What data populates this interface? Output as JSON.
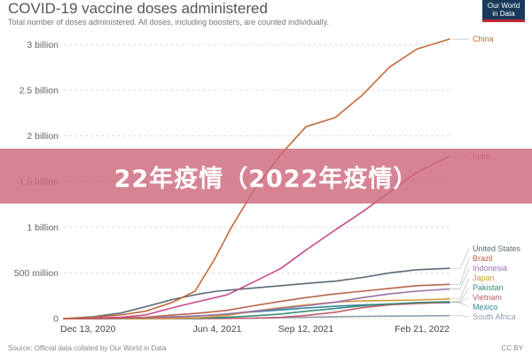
{
  "overlay": {
    "banner_text": "22年疫情（2022年疫情）",
    "banner_color": "#cd697d"
  },
  "logo": {
    "line1": "Our World",
    "line2": "in Data"
  },
  "footer": {
    "source": "Source: Official data collated by Our World in Data",
    "license": "CC BY"
  },
  "chart_data": {
    "type": "line",
    "title": "COVID-19 vaccine doses administered",
    "subtitle": "Total number of doses administered. All doses, including boosters, are counted individually.",
    "ylabel": "",
    "xlabel": "",
    "x_range": [
      "2020-12-13",
      "2022-02-21"
    ],
    "x_ticks": [
      {
        "date": "2020-12-13",
        "label": "Dec 13, 2020"
      },
      {
        "date": "2021-06-04",
        "label": "Jun 4, 2021"
      },
      {
        "date": "2021-09-12",
        "label": "Sep 12, 2021"
      },
      {
        "date": "2022-02-21",
        "label": "Feb 21, 2022"
      }
    ],
    "y_range": [
      0,
      3100000000
    ],
    "y_ticks": [
      {
        "value": 0,
        "label": "0"
      },
      {
        "value": 500000000,
        "label": "500 million"
      },
      {
        "value": 1000000000,
        "label": "1 billion"
      },
      {
        "value": 1500000000,
        "label": "1.5 billion"
      },
      {
        "value": 2000000000,
        "label": "2 billion"
      },
      {
        "value": 2500000000,
        "label": "2.5 billion"
      },
      {
        "value": 3000000000,
        "label": "3 billion"
      }
    ],
    "grid": true,
    "legend_placement": "right, end-of-line labels",
    "series": [
      {
        "name": "China",
        "color": "#c46a3a",
        "label_y": 3060000000,
        "points": [
          [
            "2020-12-13",
            0
          ],
          [
            "2021-01-15",
            15000000
          ],
          [
            "2021-02-15",
            40000000
          ],
          [
            "2021-03-15",
            80000000
          ],
          [
            "2021-04-15",
            180000000
          ],
          [
            "2021-05-10",
            300000000
          ],
          [
            "2021-06-01",
            650000000
          ],
          [
            "2021-06-20",
            1000000000
          ],
          [
            "2021-07-15",
            1400000000
          ],
          [
            "2021-08-15",
            1800000000
          ],
          [
            "2021-09-12",
            2100000000
          ],
          [
            "2021-10-15",
            2200000000
          ],
          [
            "2021-11-15",
            2450000000
          ],
          [
            "2021-12-15",
            2750000000
          ],
          [
            "2022-01-15",
            2950000000
          ],
          [
            "2022-02-21",
            3060000000
          ]
        ]
      },
      {
        "name": "India",
        "color": "#c74a8a",
        "label_y": 1780000000,
        "points": [
          [
            "2020-12-13",
            0
          ],
          [
            "2021-01-16",
            5000000
          ],
          [
            "2021-02-15",
            15000000
          ],
          [
            "2021-03-15",
            40000000
          ],
          [
            "2021-04-15",
            120000000
          ],
          [
            "2021-05-15",
            190000000
          ],
          [
            "2021-06-15",
            260000000
          ],
          [
            "2021-07-15",
            400000000
          ],
          [
            "2021-08-15",
            550000000
          ],
          [
            "2021-09-12",
            750000000
          ],
          [
            "2021-10-15",
            970000000
          ],
          [
            "2021-11-15",
            1170000000
          ],
          [
            "2021-12-15",
            1380000000
          ],
          [
            "2022-01-15",
            1600000000
          ],
          [
            "2022-02-21",
            1780000000
          ]
        ]
      },
      {
        "name": "United States",
        "color": "#5b6a78",
        "label_y": 560000000,
        "points": [
          [
            "2020-12-13",
            0
          ],
          [
            "2021-01-15",
            20000000
          ],
          [
            "2021-02-15",
            60000000
          ],
          [
            "2021-03-15",
            130000000
          ],
          [
            "2021-04-15",
            210000000
          ],
          [
            "2021-05-15",
            270000000
          ],
          [
            "2021-06-04",
            300000000
          ],
          [
            "2021-07-15",
            335000000
          ],
          [
            "2021-08-15",
            360000000
          ],
          [
            "2021-09-12",
            385000000
          ],
          [
            "2021-10-15",
            410000000
          ],
          [
            "2021-11-15",
            450000000
          ],
          [
            "2021-12-15",
            500000000
          ],
          [
            "2022-01-15",
            535000000
          ],
          [
            "2022-02-21",
            550000000
          ]
        ]
      },
      {
        "name": "Brazil",
        "color": "#b8654c",
        "label_y": 380000000,
        "points": [
          [
            "2020-12-13",
            0
          ],
          [
            "2021-01-17",
            1000000
          ],
          [
            "2021-03-15",
            15000000
          ],
          [
            "2021-04-15",
            40000000
          ],
          [
            "2021-05-15",
            60000000
          ],
          [
            "2021-06-15",
            90000000
          ],
          [
            "2021-07-15",
            140000000
          ],
          [
            "2021-08-15",
            190000000
          ],
          [
            "2021-09-12",
            230000000
          ],
          [
            "2021-10-15",
            270000000
          ],
          [
            "2021-11-15",
            300000000
          ],
          [
            "2021-12-15",
            330000000
          ],
          [
            "2022-01-15",
            360000000
          ],
          [
            "2022-02-21",
            375000000
          ]
        ]
      },
      {
        "name": "Indonesia",
        "color": "#9a6fa8",
        "label_y": 330000000,
        "points": [
          [
            "2020-12-13",
            0
          ],
          [
            "2021-01-13",
            1000000
          ],
          [
            "2021-03-15",
            10000000
          ],
          [
            "2021-04-15",
            20000000
          ],
          [
            "2021-05-15",
            30000000
          ],
          [
            "2021-06-15",
            50000000
          ],
          [
            "2021-07-15",
            80000000
          ],
          [
            "2021-08-15",
            110000000
          ],
          [
            "2021-09-12",
            140000000
          ],
          [
            "2021-10-15",
            180000000
          ],
          [
            "2021-11-15",
            230000000
          ],
          [
            "2021-12-15",
            270000000
          ],
          [
            "2022-01-15",
            300000000
          ],
          [
            "2022-02-21",
            325000000
          ]
        ]
      },
      {
        "name": "Japan",
        "color": "#d19a3c",
        "label_y": 220000000,
        "points": [
          [
            "2020-12-13",
            0
          ],
          [
            "2021-02-17",
            0
          ],
          [
            "2021-04-15",
            3000000
          ],
          [
            "2021-05-15",
            10000000
          ],
          [
            "2021-06-15",
            35000000
          ],
          [
            "2021-07-15",
            80000000
          ],
          [
            "2021-08-15",
            120000000
          ],
          [
            "2021-09-12",
            150000000
          ],
          [
            "2021-10-15",
            180000000
          ],
          [
            "2021-11-15",
            195000000
          ],
          [
            "2021-12-15",
            198000000
          ],
          [
            "2022-01-15",
            203000000
          ],
          [
            "2022-02-21",
            215000000
          ]
        ]
      },
      {
        "name": "Pakistan",
        "color": "#3a8a7a",
        "label_y": 190000000,
        "points": [
          [
            "2020-12-13",
            0
          ],
          [
            "2021-02-02",
            0
          ],
          [
            "2021-04-15",
            3000000
          ],
          [
            "2021-05-15",
            5000000
          ],
          [
            "2021-06-15",
            15000000
          ],
          [
            "2021-07-15",
            30000000
          ],
          [
            "2021-08-15",
            50000000
          ],
          [
            "2021-09-12",
            80000000
          ],
          [
            "2021-10-15",
            110000000
          ],
          [
            "2021-11-15",
            140000000
          ],
          [
            "2021-12-15",
            160000000
          ],
          [
            "2022-01-15",
            175000000
          ],
          [
            "2022-02-21",
            185000000
          ]
        ]
      },
      {
        "name": "Vietnam",
        "color": "#c25a6a",
        "label_y": 180000000,
        "points": [
          [
            "2020-12-13",
            0
          ],
          [
            "2021-03-08",
            0
          ],
          [
            "2021-05-15",
            1000000
          ],
          [
            "2021-06-15",
            3000000
          ],
          [
            "2021-07-15",
            5000000
          ],
          [
            "2021-08-15",
            15000000
          ],
          [
            "2021-09-12",
            35000000
          ],
          [
            "2021-10-15",
            70000000
          ],
          [
            "2021-11-15",
            120000000
          ],
          [
            "2021-12-15",
            150000000
          ],
          [
            "2022-01-15",
            165000000
          ],
          [
            "2022-02-21",
            180000000
          ]
        ]
      },
      {
        "name": "Mexico",
        "color": "#2f8a9a",
        "label_y": 175000000,
        "points": [
          [
            "2020-12-13",
            0
          ],
          [
            "2021-01-15",
            1000000
          ],
          [
            "2021-03-15",
            5000000
          ],
          [
            "2021-04-15",
            15000000
          ],
          [
            "2021-05-15",
            30000000
          ],
          [
            "2021-06-15",
            50000000
          ],
          [
            "2021-07-15",
            75000000
          ],
          [
            "2021-08-15",
            95000000
          ],
          [
            "2021-09-12",
            115000000
          ],
          [
            "2021-10-15",
            135000000
          ],
          [
            "2021-11-15",
            150000000
          ],
          [
            "2021-12-15",
            160000000
          ],
          [
            "2022-01-15",
            170000000
          ],
          [
            "2022-02-21",
            175000000
          ]
        ]
      },
      {
        "name": "South Africa",
        "color": "#8c9aa8",
        "label_y": 32000000,
        "points": [
          [
            "2020-12-13",
            0
          ],
          [
            "2021-02-17",
            0
          ],
          [
            "2021-05-15",
            1000000
          ],
          [
            "2021-06-15",
            2000000
          ],
          [
            "2021-07-15",
            5000000
          ],
          [
            "2021-08-15",
            10000000
          ],
          [
            "2021-09-12",
            15000000
          ],
          [
            "2021-10-15",
            20000000
          ],
          [
            "2021-11-15",
            24000000
          ],
          [
            "2021-12-15",
            27000000
          ],
          [
            "2022-01-15",
            29000000
          ],
          [
            "2022-02-21",
            32000000
          ]
        ]
      }
    ]
  }
}
